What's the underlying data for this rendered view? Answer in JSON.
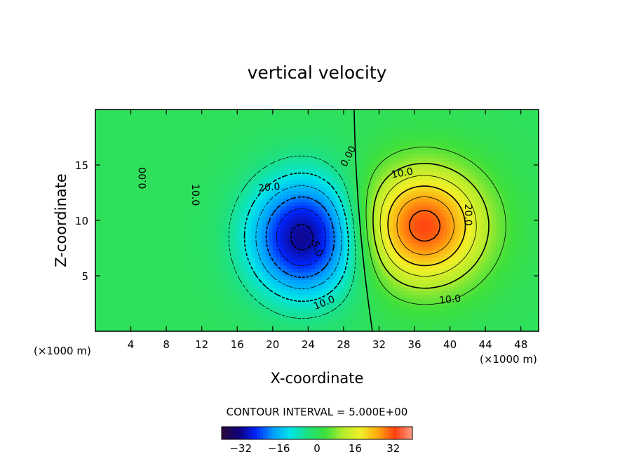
{
  "chart_data": {
    "type": "heatmap",
    "title": "vertical velocity",
    "xlabel": "X-coordinate",
    "ylabel": "Z-coordinate",
    "x_units_left": "(×1000 m)",
    "x_units_right": "(×1000 m)",
    "xlim": [
      0,
      50
    ],
    "ylim": [
      0,
      20
    ],
    "xticks": [
      "4",
      "8",
      "12",
      "16",
      "20",
      "24",
      "28",
      "32",
      "36",
      "40",
      "44",
      "48"
    ],
    "yticks": [
      "5",
      "10",
      "15"
    ],
    "contour_interval_text": "CONTOUR INTERVAL = 5.000E+00",
    "contour_interval": 5,
    "colorbar": {
      "ticks": [
        "−32",
        "−16",
        "0",
        "16",
        "32"
      ],
      "range": [
        -40,
        40
      ],
      "colormap": [
        "#2d0a3a",
        "#10007a",
        "#0026ff",
        "#00a0ff",
        "#00e6e6",
        "#20e07a",
        "#3ee03c",
        "#b6ec2c",
        "#f0f028",
        "#ffaa10",
        "#ff4010",
        "#ff9c88"
      ]
    },
    "contour_labels": [
      {
        "text": "0.00",
        "x": 5.3,
        "z": 13.8,
        "rotate": -90
      },
      {
        "text": "10.0",
        "x": 11.3,
        "z": 12.3,
        "rotate": 90
      },
      {
        "text": "20.0",
        "x": 19.6,
        "z": 13.0,
        "rotate": -5
      },
      {
        "text": "-5.0",
        "x": 25.0,
        "z": 7.6,
        "rotate": 70
      },
      {
        "text": "10.0",
        "x": 25.8,
        "z": 2.6,
        "rotate": -22
      },
      {
        "text": "0.00",
        "x": 28.5,
        "z": 15.8,
        "rotate": -62
      },
      {
        "text": "10.0",
        "x": 34.6,
        "z": 14.3,
        "rotate": -10
      },
      {
        "text": "20.0",
        "x": 42.1,
        "z": 10.5,
        "rotate": 90
      },
      {
        "text": "10.0",
        "x": 40.0,
        "z": 2.9,
        "rotate": -6
      }
    ],
    "extrema": [
      {
        "type": "min",
        "x": 23.5,
        "z": 8.5,
        "value": -32
      },
      {
        "type": "max",
        "x": 37.0,
        "z": 9.5,
        "value": 29
      }
    ]
  }
}
